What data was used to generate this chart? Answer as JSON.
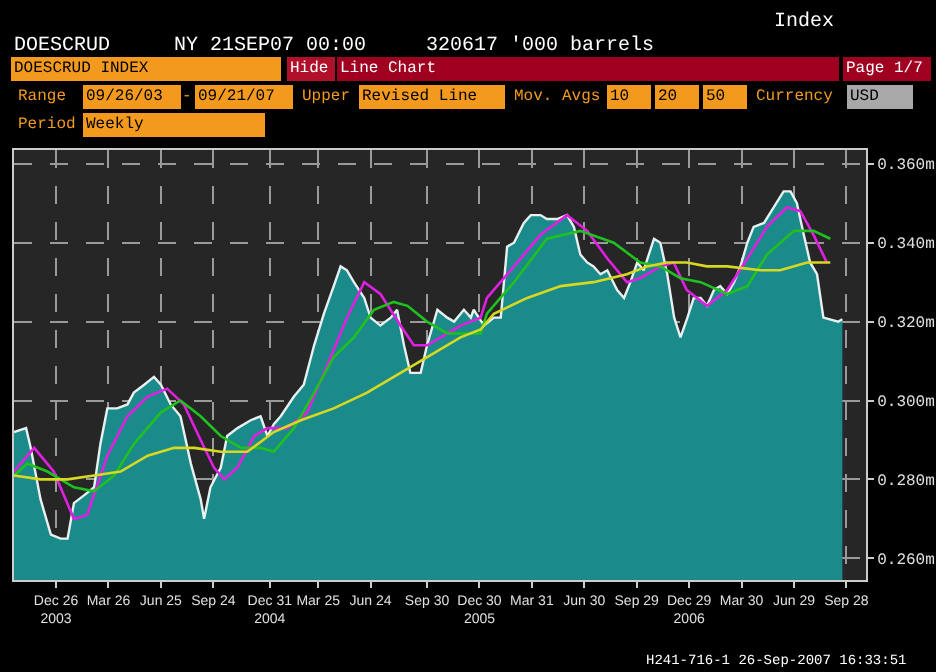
{
  "chart_data": {
    "type": "line",
    "title": "DOESCRUD",
    "subtitle": "NY 21SEP07 00:00     320617 '000 barrels",
    "annotations": [
      "Index",
      "DOESCRUD INDEX",
      "Hide",
      "Line Chart",
      "Page 1/7",
      "Range",
      "09/26/03",
      "-",
      "09/21/07",
      "Upper",
      "Revised Line",
      "Mov. Avgs",
      "10",
      "20",
      "50",
      "Currency",
      "USD",
      "Period",
      "Weekly",
      "H241-716-1 26-Sep-2007 16:33:51"
    ],
    "xlim": [
      "2003-10-14",
      "2007-11-01"
    ],
    "xticks": [
      {
        "value": "2003-12-26",
        "label": "Dec 26\n2003"
      },
      {
        "value": "2004-03-26",
        "label": "Mar 26"
      },
      {
        "value": "2004-06-25",
        "label": "Jun 25"
      },
      {
        "value": "2004-09-24",
        "label": "Sep 24"
      },
      {
        "value": "2004-12-31",
        "label": "Dec 31\n2004"
      },
      {
        "value": "2005-03-25",
        "label": "Mar 25"
      },
      {
        "value": "2005-06-24",
        "label": "Jun 24"
      },
      {
        "value": "2005-09-30",
        "label": "Sep 30"
      },
      {
        "value": "2005-12-30",
        "label": "Dec 30\n2005"
      },
      {
        "value": "2006-03-31",
        "label": "Mar 31"
      },
      {
        "value": "2006-06-30",
        "label": "Jun 30"
      },
      {
        "value": "2006-09-29",
        "label": "Sep 29"
      },
      {
        "value": "2006-12-29",
        "label": "Dec 29\n2006"
      },
      {
        "value": "2007-03-30",
        "label": "Mar 30"
      },
      {
        "value": "2007-06-29",
        "label": "Jun 29"
      },
      {
        "value": "2007-09-28",
        "label": "Sep 28"
      }
    ],
    "ylim": [
      0.2545,
      0.3635
    ],
    "yticks": [
      {
        "value": 0.26,
        "label": "0.260m"
      },
      {
        "value": 0.28,
        "label": "0.280m"
      },
      {
        "value": 0.3,
        "label": "0.300m"
      },
      {
        "value": 0.32,
        "label": "0.320m"
      },
      {
        "value": 0.34,
        "label": "0.340m"
      },
      {
        "value": 0.36,
        "label": "0.360m"
      }
    ],
    "grid": true,
    "series": [
      {
        "type": "area",
        "color": "#1a8a8a",
        "x": [
          "2003-10-14",
          "2003-11-04",
          "2003-11-12",
          "2003-11-29",
          "2003-12-17",
          "2004-01-03",
          "2004-01-15",
          "2004-01-26",
          "2004-02-13",
          "2004-03-01",
          "2004-03-12",
          "2004-03-24",
          "2004-04-10",
          "2004-04-28",
          "2004-05-09",
          "2004-05-27",
          "2004-06-13",
          "2004-06-25",
          "2004-07-12",
          "2004-07-29",
          "2004-08-16",
          "2004-09-02",
          "2004-09-08",
          "2004-09-19",
          "2004-10-07",
          "2004-10-18",
          "2004-11-05",
          "2004-11-28",
          "2004-12-15",
          "2004-12-27",
          "2005-01-07",
          "2005-01-19",
          "2005-02-11",
          "2005-02-28",
          "2005-03-18",
          "2005-04-04",
          "2005-04-21",
          "2005-05-03",
          "2005-05-14",
          "2005-05-26",
          "2005-06-13",
          "2005-06-24",
          "2005-07-11",
          "2005-07-29",
          "2005-08-09",
          "2005-08-21",
          "2005-09-01",
          "2005-09-19",
          "2005-09-30",
          "2005-10-18",
          "2005-11-04",
          "2005-11-16",
          "2005-12-03",
          "2005-12-15",
          "2005-12-20",
          "2006-01-07",
          "2006-01-24",
          "2006-02-05",
          "2006-02-16",
          "2006-02-28",
          "2006-03-17",
          "2006-03-29",
          "2006-04-15",
          "2006-04-26",
          "2006-05-14",
          "2006-05-31",
          "2006-06-12",
          "2006-06-23",
          "2006-07-05",
          "2006-07-16",
          "2006-07-28",
          "2006-08-09",
          "2006-08-26",
          "2006-09-07",
          "2006-09-18",
          "2006-09-30",
          "2006-10-11",
          "2006-10-29",
          "2006-11-09",
          "2006-11-21",
          "2006-12-03",
          "2006-12-14",
          "2006-12-26",
          "2007-01-06",
          "2007-01-18",
          "2007-01-29",
          "2007-02-10",
          "2007-02-21",
          "2007-03-05",
          "2007-03-17",
          "2007-03-28",
          "2007-04-09",
          "2007-04-20",
          "2007-05-08",
          "2007-05-25",
          "2007-06-11",
          "2007-06-23",
          "2007-07-04",
          "2007-07-16",
          "2007-07-27",
          "2007-08-08",
          "2007-08-19",
          "2007-09-14",
          "2007-09-21"
        ],
        "values": [
          0.292,
          0.293,
          0.288,
          0.275,
          0.266,
          0.265,
          0.265,
          0.274,
          0.276,
          0.278,
          0.289,
          0.298,
          0.298,
          0.299,
          0.302,
          0.304,
          0.306,
          0.304,
          0.299,
          0.296,
          0.284,
          0.275,
          0.27,
          0.278,
          0.283,
          0.291,
          0.293,
          0.295,
          0.296,
          0.291,
          0.294,
          0.296,
          0.301,
          0.304,
          0.314,
          0.322,
          0.329,
          0.334,
          0.333,
          0.33,
          0.326,
          0.321,
          0.319,
          0.321,
          0.323,
          0.314,
          0.307,
          0.307,
          0.314,
          0.323,
          0.321,
          0.32,
          0.323,
          0.321,
          0.323,
          0.319,
          0.321,
          0.321,
          0.339,
          0.34,
          0.345,
          0.347,
          0.347,
          0.346,
          0.346,
          0.347,
          0.344,
          0.337,
          0.335,
          0.334,
          0.332,
          0.333,
          0.328,
          0.326,
          0.33,
          0.335,
          0.333,
          0.341,
          0.34,
          0.332,
          0.321,
          0.316,
          0.321,
          0.326,
          0.326,
          0.324,
          0.328,
          0.329,
          0.327,
          0.33,
          0.334,
          0.34,
          0.344,
          0.345,
          0.349,
          0.353,
          0.353,
          0.35,
          0.342,
          0.335,
          0.332,
          0.321,
          0.32,
          0.3206
        ]
      },
      {
        "color": "#e020e0",
        "x": [
          "2003-10-14",
          "2003-11-18",
          "2003-12-22",
          "2004-01-26",
          "2004-02-18",
          "2004-03-24",
          "2004-04-28",
          "2004-06-02",
          "2004-07-06",
          "2004-08-04",
          "2004-09-02",
          "2004-09-25",
          "2004-10-13",
          "2004-11-05",
          "2004-12-04",
          "2004-12-27",
          "2005-01-30",
          "2005-03-06",
          "2005-04-10",
          "2005-05-14",
          "2005-06-13",
          "2005-07-11",
          "2005-08-15",
          "2005-09-07",
          "2005-09-30",
          "2005-10-24",
          "2005-11-27",
          "2006-01-01",
          "2006-01-12",
          "2006-02-28",
          "2006-04-15",
          "2006-05-31",
          "2006-07-05",
          "2006-08-09",
          "2006-09-12",
          "2006-10-05",
          "2006-11-09",
          "2006-12-02",
          "2006-12-25",
          "2007-01-29",
          "2007-03-05",
          "2007-04-09",
          "2007-05-13",
          "2007-06-17",
          "2007-07-10",
          "2007-08-02",
          "2007-08-25"
        ],
        "values": [
          0.282,
          0.288,
          0.282,
          0.27,
          0.271,
          0.286,
          0.296,
          0.301,
          0.303,
          0.299,
          0.29,
          0.283,
          0.28,
          0.283,
          0.291,
          0.293,
          0.293,
          0.297,
          0.309,
          0.321,
          0.33,
          0.327,
          0.319,
          0.314,
          0.314,
          0.316,
          0.319,
          0.321,
          0.326,
          0.334,
          0.342,
          0.347,
          0.343,
          0.336,
          0.33,
          0.331,
          0.334,
          0.335,
          0.328,
          0.324,
          0.328,
          0.336,
          0.344,
          0.349,
          0.348,
          0.342,
          0.335
        ]
      },
      {
        "color": "#20c020",
        "x": [
          "2003-10-14",
          "2003-11-06",
          "2003-12-11",
          "2004-01-26",
          "2004-03-01",
          "2004-04-05",
          "2004-05-09",
          "2004-06-25",
          "2004-07-29",
          "2004-09-02",
          "2004-10-07",
          "2004-11-11",
          "2004-12-15",
          "2005-01-07",
          "2005-02-11",
          "2005-03-18",
          "2005-04-21",
          "2005-05-26",
          "2005-06-30",
          "2005-08-03",
          "2005-08-27",
          "2005-09-30",
          "2005-11-04",
          "2006-01-01",
          "2006-01-12",
          "2006-02-28",
          "2006-04-26",
          "2006-06-23",
          "2006-08-20",
          "2006-10-05",
          "2006-11-09",
          "2006-12-14",
          "2007-01-18",
          "2007-03-05",
          "2007-04-09",
          "2007-05-13",
          "2007-06-29",
          "2007-08-02",
          "2007-08-31"
        ],
        "values": [
          0.281,
          0.284,
          0.282,
          0.278,
          0.277,
          0.281,
          0.289,
          0.297,
          0.3,
          0.296,
          0.291,
          0.288,
          0.288,
          0.287,
          0.293,
          0.302,
          0.311,
          0.316,
          0.323,
          0.325,
          0.324,
          0.32,
          0.317,
          0.317,
          0.322,
          0.33,
          0.341,
          0.343,
          0.34,
          0.335,
          0.334,
          0.331,
          0.33,
          0.327,
          0.329,
          0.337,
          0.343,
          0.343,
          0.341
        ]
      },
      {
        "color": "#d8d820",
        "x": [
          "2003-10-14",
          "2003-11-29",
          "2004-01-15",
          "2004-03-01",
          "2004-04-16",
          "2004-06-02",
          "2004-07-18",
          "2004-08-22",
          "2004-10-07",
          "2004-11-22",
          "2005-01-07",
          "2005-02-23",
          "2005-04-21",
          "2005-06-18",
          "2005-08-15",
          "2005-10-12",
          "2005-11-27",
          "2006-01-01",
          "2006-01-24",
          "2006-03-23",
          "2006-05-20",
          "2006-07-16",
          "2006-09-12",
          "2006-10-17",
          "2006-11-21",
          "2006-12-25",
          "2007-01-29",
          "2007-03-05",
          "2007-05-02",
          "2007-06-05",
          "2007-07-22",
          "2007-08-31"
        ],
        "values": [
          0.281,
          0.28,
          0.28,
          0.281,
          0.282,
          0.286,
          0.288,
          0.288,
          0.287,
          0.287,
          0.292,
          0.295,
          0.298,
          0.302,
          0.307,
          0.312,
          0.316,
          0.318,
          0.322,
          0.326,
          0.329,
          0.33,
          0.332,
          0.334,
          0.335,
          0.335,
          0.334,
          0.334,
          0.333,
          0.333,
          0.335,
          0.335
        ]
      }
    ]
  }
}
